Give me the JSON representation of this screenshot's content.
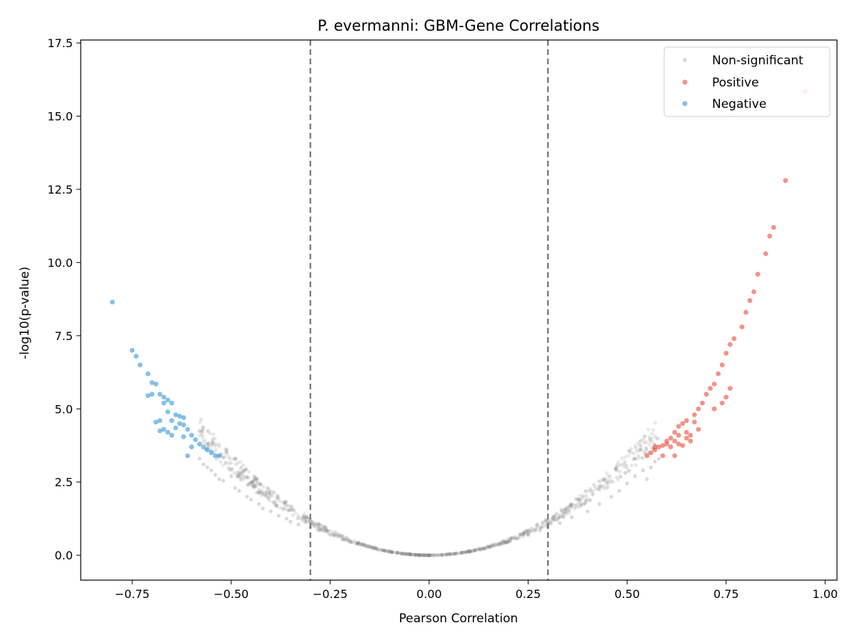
{
  "chart_data": {
    "type": "scatter",
    "title": "P. evermanni: GBM-Gene Correlations",
    "xlabel": "Pearson Correlation",
    "ylabel": "-log10(p-value)",
    "xlim": [
      -0.88,
      1.03
    ],
    "ylim": [
      -0.85,
      17.6
    ],
    "x_ticks": [
      -0.75,
      -0.5,
      -0.25,
      0.0,
      0.25,
      0.5,
      0.75,
      1.0
    ],
    "x_tick_labels": [
      "−0.75",
      "−0.50",
      "−0.25",
      "0.00",
      "0.25",
      "0.50",
      "0.75",
      "1.00"
    ],
    "y_ticks": [
      0.0,
      2.5,
      5.0,
      7.5,
      10.0,
      12.5,
      15.0,
      17.5
    ],
    "y_tick_labels": [
      "0.0",
      "2.5",
      "5.0",
      "7.5",
      "10.0",
      "12.5",
      "15.0",
      "17.5"
    ],
    "thresholds": [
      -0.3,
      0.3
    ],
    "legend": {
      "position": "top-right",
      "entries": [
        {
          "label": "Non-significant",
          "color": "#b0b0b0"
        },
        {
          "label": "Positive",
          "color": "#e74c3c"
        },
        {
          "label": "Negative",
          "color": "#3498db"
        }
      ]
    },
    "series": [
      {
        "name": "Non-significant",
        "color": "#808080",
        "curve": "y = 13.8 * r^2 (approximate), |r| <= 0.58",
        "points": [
          [
            -0.58,
            3.3
          ],
          [
            -0.57,
            3.1
          ],
          [
            -0.56,
            3.0
          ],
          [
            -0.55,
            2.9
          ],
          [
            -0.54,
            2.75
          ],
          [
            -0.53,
            2.6
          ],
          [
            -0.52,
            2.55
          ],
          [
            -0.5,
            2.7
          ],
          [
            -0.49,
            2.3
          ],
          [
            -0.48,
            2.2
          ],
          [
            -0.46,
            2.0
          ],
          [
            -0.45,
            1.9
          ],
          [
            -0.43,
            1.75
          ],
          [
            -0.42,
            1.6
          ],
          [
            -0.4,
            1.5
          ],
          [
            -0.38,
            1.35
          ],
          [
            -0.36,
            1.25
          ],
          [
            -0.35,
            1.15
          ],
          [
            -0.33,
            1.05
          ],
          [
            -0.3,
            0.95
          ],
          [
            -0.28,
            0.85
          ],
          [
            -0.25,
            0.7
          ],
          [
            -0.22,
            0.55
          ],
          [
            -0.2,
            0.45
          ],
          [
            -0.15,
            0.3
          ],
          [
            -0.1,
            0.15
          ],
          [
            -0.05,
            0.05
          ],
          [
            0.0,
            0.0
          ],
          [
            0.05,
            0.05
          ],
          [
            0.1,
            0.15
          ],
          [
            0.15,
            0.3
          ],
          [
            0.2,
            0.45
          ],
          [
            0.25,
            0.7
          ],
          [
            0.28,
            0.85
          ],
          [
            0.3,
            0.95
          ],
          [
            0.33,
            1.1
          ],
          [
            0.36,
            1.3
          ],
          [
            0.4,
            1.5
          ],
          [
            0.43,
            1.75
          ],
          [
            0.46,
            2.0
          ],
          [
            0.48,
            2.2
          ],
          [
            0.5,
            2.45
          ],
          [
            0.52,
            2.7
          ],
          [
            0.54,
            2.9
          ],
          [
            0.55,
            2.6
          ],
          [
            0.56,
            3.0
          ],
          [
            0.57,
            3.2
          ],
          [
            0.58,
            3.3
          ]
        ]
      },
      {
        "name": "Positive",
        "color": "#e74c3c",
        "points": [
          [
            0.55,
            3.4
          ],
          [
            0.56,
            3.5
          ],
          [
            0.57,
            3.6
          ],
          [
            0.58,
            3.7
          ],
          [
            0.59,
            3.75
          ],
          [
            0.6,
            3.9
          ],
          [
            0.61,
            4.0
          ],
          [
            0.62,
            4.2
          ],
          [
            0.63,
            4.4
          ],
          [
            0.64,
            4.5
          ],
          [
            0.65,
            4.6
          ],
          [
            0.6,
            3.8
          ],
          [
            0.61,
            3.7
          ],
          [
            0.62,
            3.9
          ],
          [
            0.63,
            3.8
          ],
          [
            0.64,
            3.75
          ],
          [
            0.66,
            3.9
          ],
          [
            0.62,
            3.4
          ],
          [
            0.59,
            3.4
          ],
          [
            0.57,
            3.7
          ],
          [
            0.65,
            4.0
          ],
          [
            0.66,
            4.1
          ],
          [
            0.67,
            4.8
          ],
          [
            0.68,
            5.0
          ],
          [
            0.69,
            5.2
          ],
          [
            0.7,
            5.5
          ],
          [
            0.71,
            5.7
          ],
          [
            0.72,
            5.85
          ],
          [
            0.73,
            6.2
          ],
          [
            0.74,
            6.5
          ],
          [
            0.75,
            6.9
          ],
          [
            0.76,
            7.2
          ],
          [
            0.77,
            7.4
          ],
          [
            0.75,
            5.4
          ],
          [
            0.76,
            5.7
          ],
          [
            0.74,
            5.2
          ],
          [
            0.72,
            5.0
          ],
          [
            0.68,
            4.3
          ],
          [
            0.67,
            4.55
          ],
          [
            0.65,
            4.2
          ],
          [
            0.63,
            4.1
          ],
          [
            0.79,
            7.8
          ],
          [
            0.8,
            8.3
          ],
          [
            0.81,
            8.7
          ],
          [
            0.82,
            9.0
          ],
          [
            0.83,
            9.6
          ],
          [
            0.85,
            10.3
          ],
          [
            0.86,
            10.9
          ],
          [
            0.87,
            11.2
          ],
          [
            0.9,
            12.8
          ],
          [
            0.95,
            15.85
          ]
        ]
      },
      {
        "name": "Negative",
        "color": "#3498db",
        "points": [
          [
            -0.8,
            8.65
          ],
          [
            -0.75,
            7.0
          ],
          [
            -0.74,
            6.8
          ],
          [
            -0.73,
            6.5
          ],
          [
            -0.71,
            6.2
          ],
          [
            -0.7,
            5.9
          ],
          [
            -0.69,
            5.85
          ],
          [
            -0.68,
            5.5
          ],
          [
            -0.67,
            5.4
          ],
          [
            -0.66,
            5.3
          ],
          [
            -0.65,
            5.2
          ],
          [
            -0.67,
            5.2
          ],
          [
            -0.7,
            5.5
          ],
          [
            -0.71,
            5.45
          ],
          [
            -0.66,
            4.9
          ],
          [
            -0.64,
            4.8
          ],
          [
            -0.63,
            4.75
          ],
          [
            -0.62,
            4.7
          ],
          [
            -0.65,
            4.6
          ],
          [
            -0.68,
            4.6
          ],
          [
            -0.67,
            4.3
          ],
          [
            -0.66,
            4.2
          ],
          [
            -0.65,
            4.1
          ],
          [
            -0.64,
            4.35
          ],
          [
            -0.63,
            4.5
          ],
          [
            -0.62,
            4.45
          ],
          [
            -0.61,
            4.3
          ],
          [
            -0.6,
            4.1
          ],
          [
            -0.59,
            3.95
          ],
          [
            -0.58,
            3.8
          ],
          [
            -0.57,
            3.7
          ],
          [
            -0.56,
            3.6
          ],
          [
            -0.55,
            3.5
          ],
          [
            -0.54,
            3.4
          ],
          [
            -0.53,
            3.4
          ],
          [
            -0.6,
            3.7
          ],
          [
            -0.61,
            3.4
          ],
          [
            -0.62,
            4.05
          ],
          [
            -0.68,
            4.25
          ],
          [
            -0.69,
            4.55
          ]
        ]
      }
    ]
  }
}
